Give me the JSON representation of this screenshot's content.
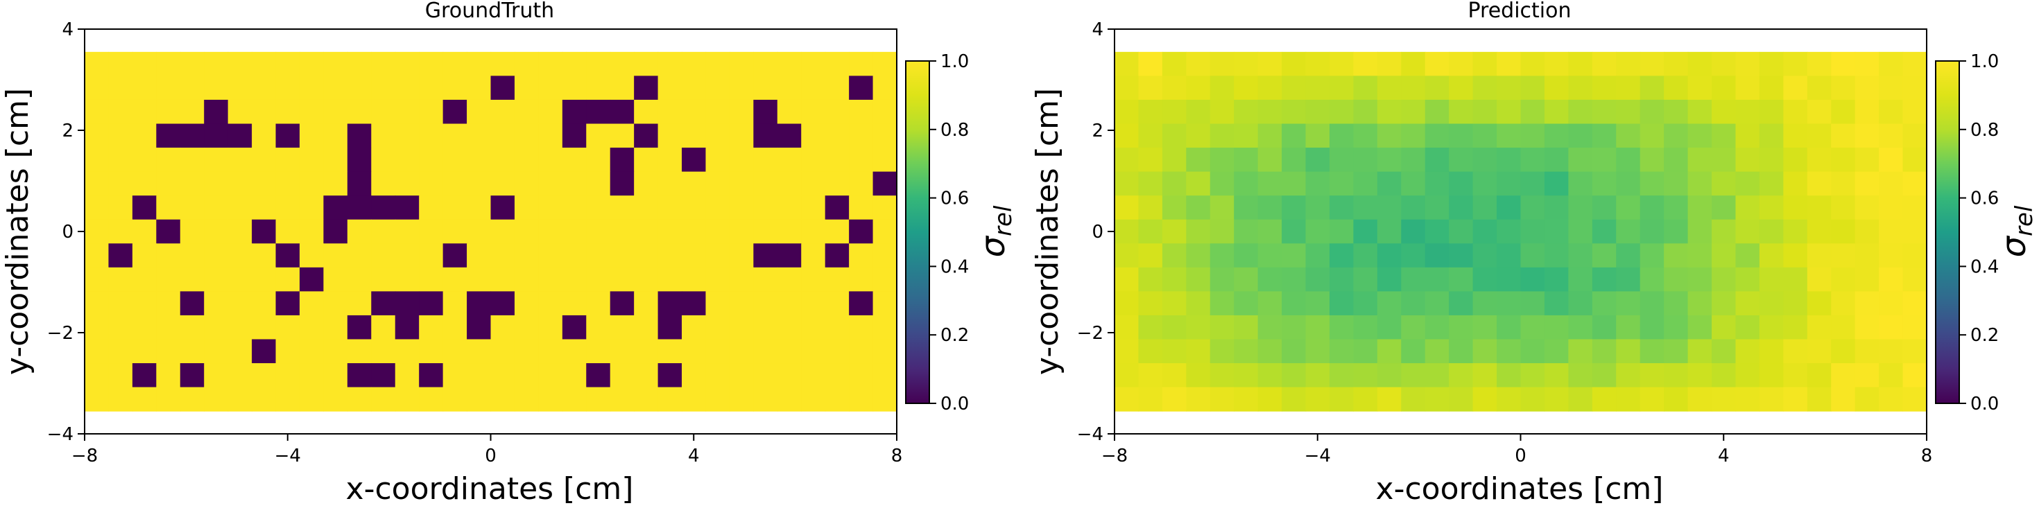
{
  "chart_data": [
    {
      "type": "heatmap",
      "title": "GroundTruth",
      "xlabel": "x-coordinates [cm]",
      "ylabel": "y-coordinates [cm]",
      "xlim": [
        -8,
        8
      ],
      "ylim": [
        -4,
        4
      ],
      "extent": {
        "x": [
          -8,
          8
        ],
        "y": [
          -3.55,
          3.55
        ]
      },
      "xticks": [
        -8,
        -4,
        0,
        4,
        8
      ],
      "yticks": [
        -4,
        -2,
        0,
        2,
        4
      ],
      "colormap": "viridis",
      "colorbar": {
        "label": "σ_rel",
        "label_main": "σ",
        "label_sub": "rel",
        "range": [
          0,
          1
        ],
        "ticks": [
          0.0,
          0.2,
          0.4,
          0.6,
          0.8,
          1.0
        ]
      },
      "grid_cols": 34,
      "grid_rows": 15,
      "rows_top_to_bottom": [
        "1111111111111111111111111111111111",
        "1111111111111111101111101111111101",
        "1111101111111110111100011111011111",
        "1110000101101111111101101111001111",
        "1111111111101111111111011011111111",
        "1111111111101111111111011111111110",
        "1101111111000011101111111111111011",
        "1110111011011111111111111111111101",
        "1011111101111110111111111111001011",
        "1111111110111111111111111111111111",
        "1111011101110001001111010011111101",
        "1111111111101011011101110111111111",
        "1111111011111111111111111111111111",
        "1101011111100101111110110111111111",
        "1111111111111111111111111111111111"
      ]
    },
    {
      "type": "heatmap",
      "title": "Prediction",
      "xlabel": "x-coordinates [cm]",
      "ylabel": "y-coordinates [cm]",
      "xlim": [
        -8,
        8
      ],
      "ylim": [
        -4,
        4
      ],
      "extent": {
        "x": [
          -8,
          8
        ],
        "y": [
          -3.55,
          3.55
        ]
      },
      "xticks": [
        -8,
        -4,
        0,
        4,
        8
      ],
      "yticks": [
        -4,
        -2,
        0,
        2,
        4
      ],
      "colormap": "viridis",
      "colorbar": {
        "label": "σ_rel",
        "label_main": "σ",
        "label_sub": "rel",
        "range": [
          0,
          1
        ],
        "ticks": [
          0.0,
          0.2,
          0.4,
          0.6,
          0.8,
          1.0
        ]
      },
      "grid_cols": 34,
      "grid_rows": 15
    }
  ]
}
